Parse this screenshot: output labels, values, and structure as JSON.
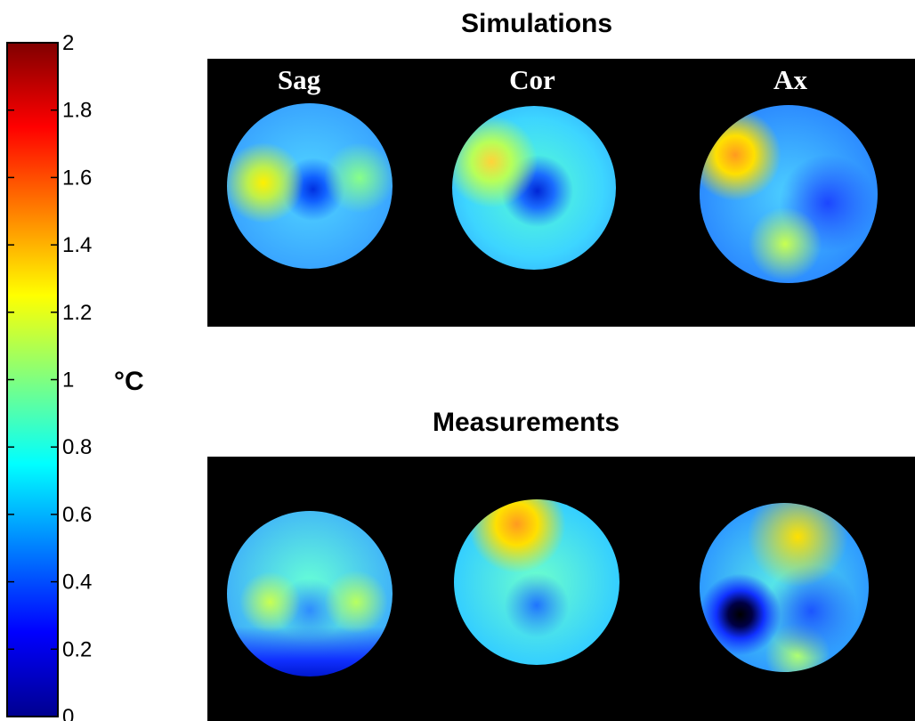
{
  "colorbar": {
    "ticks": [
      "2",
      "1.8",
      "1.6",
      "1.4",
      "1.2",
      "1",
      "0.8",
      "0.6",
      "0.4",
      "0.2",
      "0"
    ],
    "min": 0,
    "max": 2,
    "colormap": "jet",
    "unit": "°C"
  },
  "panels": {
    "simulations": {
      "title": "Simulations",
      "views": [
        {
          "label": "Sag",
          "color": "#55c9ff"
        },
        {
          "label": "Cor",
          "color": "#3fd6f0"
        },
        {
          "label": "Ax",
          "color": "#2aa8ff"
        }
      ]
    },
    "measurements": {
      "title": "Measurements",
      "views": [
        {
          "label": "",
          "color": "#35b8ff"
        },
        {
          "label": "",
          "color": "#3fd2ff"
        },
        {
          "label": "",
          "color": "#2e9cff"
        }
      ]
    }
  }
}
